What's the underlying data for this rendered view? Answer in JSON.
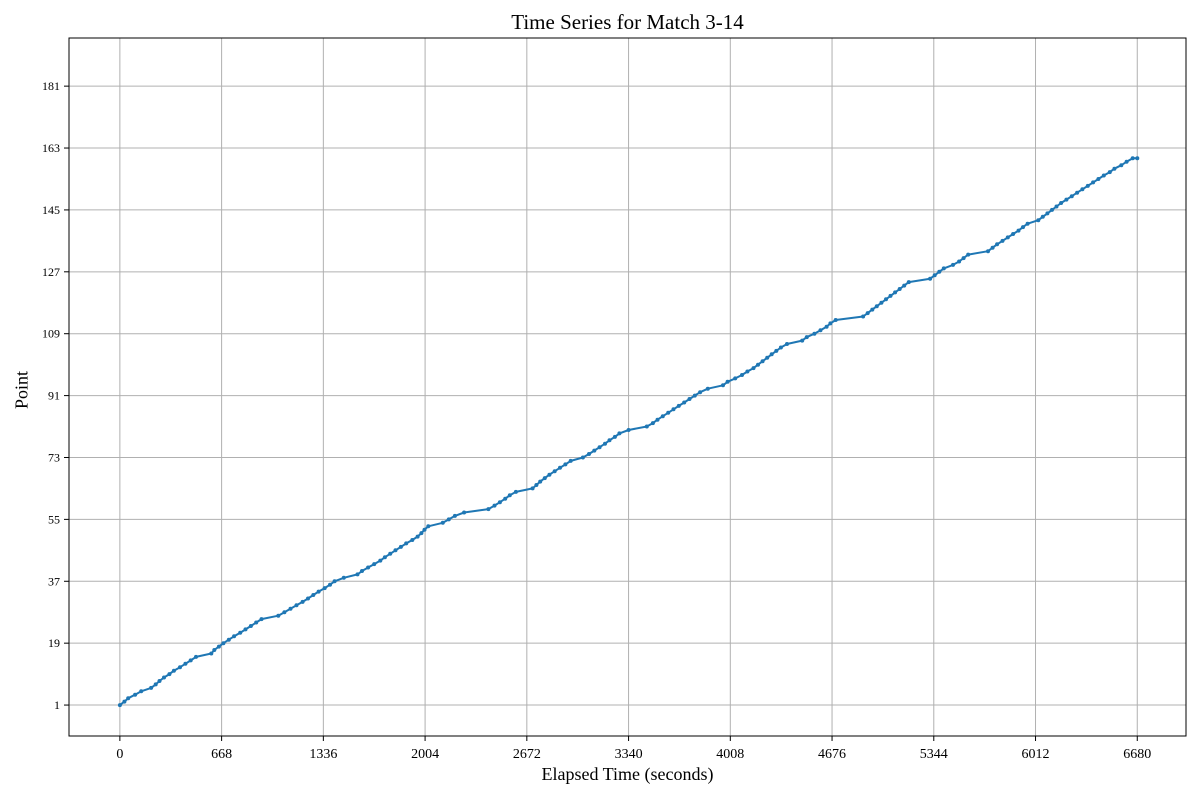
{
  "chart_data": {
    "type": "line",
    "title": "Time Series for Match 3-14",
    "xlabel": "Elapsed Time (seconds)",
    "ylabel": "Point",
    "xlim": [
      -334,
      7000
    ],
    "ylim": [
      -8,
      195
    ],
    "xticks": [
      0,
      668,
      1336,
      2004,
      2672,
      3340,
      4008,
      4676,
      5344,
      6012,
      6680
    ],
    "yticks": [
      1,
      19,
      37,
      55,
      73,
      91,
      109,
      127,
      145,
      163,
      181
    ],
    "grid": true,
    "legend": "none",
    "series_color": "#1f77b4",
    "series": [
      {
        "values": [
          [
            0,
            1
          ],
          [
            30,
            2
          ],
          [
            55,
            3
          ],
          [
            100,
            4
          ],
          [
            140,
            5
          ],
          [
            205,
            6
          ],
          [
            235,
            7
          ],
          [
            260,
            8
          ],
          [
            290,
            9
          ],
          [
            325,
            10
          ],
          [
            355,
            11
          ],
          [
            395,
            12
          ],
          [
            430,
            13
          ],
          [
            465,
            14
          ],
          [
            500,
            15
          ],
          [
            600,
            16
          ],
          [
            620,
            17
          ],
          [
            650,
            18
          ],
          [
            680,
            19
          ],
          [
            715,
            20
          ],
          [
            750,
            21
          ],
          [
            790,
            22
          ],
          [
            825,
            23
          ],
          [
            860,
            24
          ],
          [
            895,
            25
          ],
          [
            930,
            26
          ],
          [
            1040,
            27
          ],
          [
            1080,
            28
          ],
          [
            1120,
            29
          ],
          [
            1160,
            30
          ],
          [
            1200,
            31
          ],
          [
            1235,
            32
          ],
          [
            1270,
            33
          ],
          [
            1305,
            34
          ],
          [
            1345,
            35
          ],
          [
            1380,
            36
          ],
          [
            1410,
            37
          ],
          [
            1470,
            38
          ],
          [
            1560,
            39
          ],
          [
            1590,
            40
          ],
          [
            1630,
            41
          ],
          [
            1670,
            42
          ],
          [
            1710,
            43
          ],
          [
            1740,
            44
          ],
          [
            1775,
            45
          ],
          [
            1810,
            46
          ],
          [
            1845,
            47
          ],
          [
            1880,
            48
          ],
          [
            1920,
            49
          ],
          [
            1955,
            50
          ],
          [
            1980,
            51
          ],
          [
            2000,
            52
          ],
          [
            2025,
            53
          ],
          [
            2120,
            54
          ],
          [
            2160,
            55
          ],
          [
            2200,
            56
          ],
          [
            2260,
            57
          ],
          [
            2420,
            58
          ],
          [
            2460,
            59
          ],
          [
            2495,
            60
          ],
          [
            2530,
            61
          ],
          [
            2560,
            62
          ],
          [
            2600,
            63
          ],
          [
            2710,
            64
          ],
          [
            2735,
            65
          ],
          [
            2760,
            66
          ],
          [
            2790,
            67
          ],
          [
            2820,
            68
          ],
          [
            2855,
            69
          ],
          [
            2890,
            70
          ],
          [
            2925,
            71
          ],
          [
            2960,
            72
          ],
          [
            3040,
            73
          ],
          [
            3080,
            74
          ],
          [
            3115,
            75
          ],
          [
            3150,
            76
          ],
          [
            3185,
            77
          ],
          [
            3215,
            78
          ],
          [
            3250,
            79
          ],
          [
            3280,
            80
          ],
          [
            3340,
            81
          ],
          [
            3460,
            82
          ],
          [
            3500,
            83
          ],
          [
            3530,
            84
          ],
          [
            3565,
            85
          ],
          [
            3600,
            86
          ],
          [
            3635,
            87
          ],
          [
            3670,
            88
          ],
          [
            3705,
            89
          ],
          [
            3740,
            90
          ],
          [
            3775,
            91
          ],
          [
            3810,
            92
          ],
          [
            3860,
            93
          ],
          [
            3960,
            94
          ],
          [
            3990,
            95
          ],
          [
            4040,
            96
          ],
          [
            4085,
            97
          ],
          [
            4120,
            98
          ],
          [
            4160,
            99
          ],
          [
            4190,
            100
          ],
          [
            4220,
            101
          ],
          [
            4250,
            102
          ],
          [
            4280,
            103
          ],
          [
            4310,
            104
          ],
          [
            4340,
            105
          ],
          [
            4380,
            106
          ],
          [
            4480,
            107
          ],
          [
            4510,
            108
          ],
          [
            4560,
            109
          ],
          [
            4600,
            110
          ],
          [
            4640,
            111
          ],
          [
            4665,
            112
          ],
          [
            4700,
            113
          ],
          [
            4880,
            114
          ],
          [
            4910,
            115
          ],
          [
            4940,
            116
          ],
          [
            4970,
            117
          ],
          [
            5000,
            118
          ],
          [
            5030,
            119
          ],
          [
            5060,
            120
          ],
          [
            5090,
            121
          ],
          [
            5120,
            122
          ],
          [
            5150,
            123
          ],
          [
            5180,
            124
          ],
          [
            5320,
            125
          ],
          [
            5350,
            126
          ],
          [
            5380,
            127
          ],
          [
            5410,
            128
          ],
          [
            5470,
            129
          ],
          [
            5510,
            130
          ],
          [
            5540,
            131
          ],
          [
            5570,
            132
          ],
          [
            5700,
            133
          ],
          [
            5730,
            134
          ],
          [
            5760,
            135
          ],
          [
            5795,
            136
          ],
          [
            5830,
            137
          ],
          [
            5865,
            138
          ],
          [
            5900,
            139
          ],
          [
            5930,
            140
          ],
          [
            5960,
            141
          ],
          [
            6030,
            142
          ],
          [
            6060,
            143
          ],
          [
            6090,
            144
          ],
          [
            6120,
            145
          ],
          [
            6150,
            146
          ],
          [
            6180,
            147
          ],
          [
            6215,
            148
          ],
          [
            6250,
            149
          ],
          [
            6285,
            150
          ],
          [
            6320,
            151
          ],
          [
            6355,
            152
          ],
          [
            6390,
            153
          ],
          [
            6425,
            154
          ],
          [
            6460,
            155
          ],
          [
            6500,
            156
          ],
          [
            6530,
            157
          ],
          [
            6575,
            158
          ],
          [
            6610,
            159
          ],
          [
            6650,
            160
          ],
          [
            6680,
            160
          ]
        ]
      }
    ]
  }
}
